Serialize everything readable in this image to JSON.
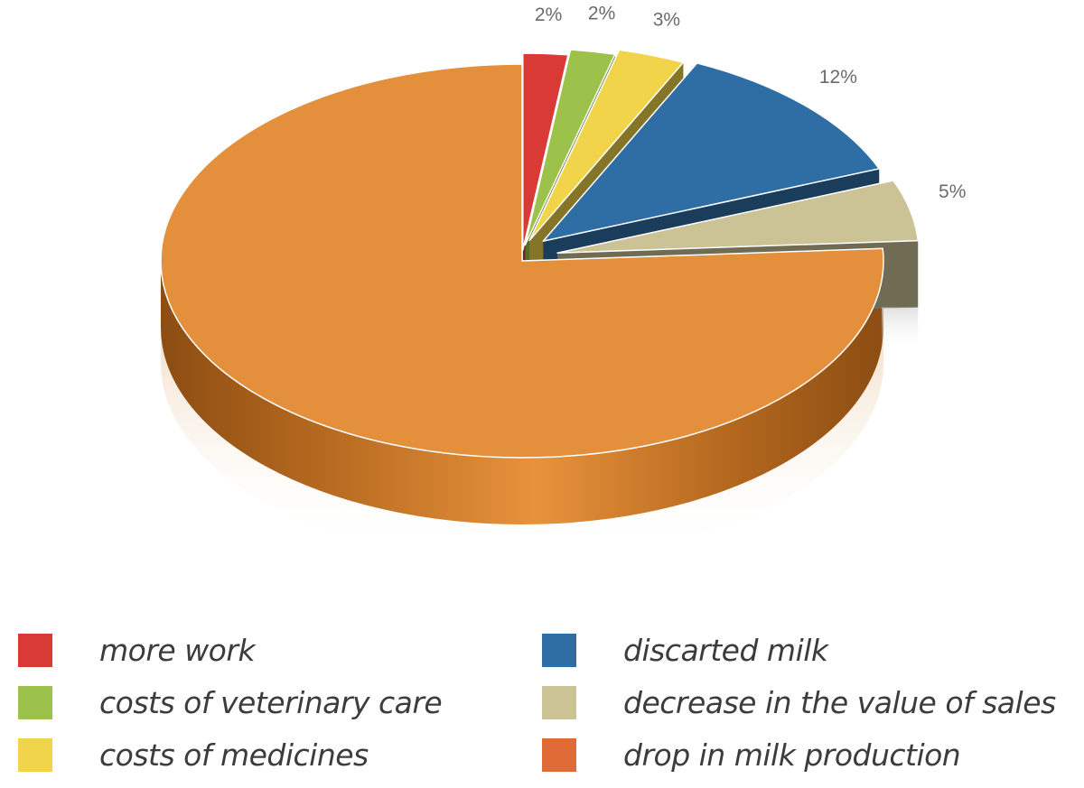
{
  "chart_data": {
    "type": "pie",
    "slices": [
      {
        "label": "more work",
        "value": 2,
        "value_label": "2%",
        "color": "#d93a35"
      },
      {
        "label": "costs of veterinary care",
        "value": 2,
        "value_label": "2%",
        "color": "#9cc24c"
      },
      {
        "label": "costs of medicines",
        "value": 3,
        "value_label": "3%",
        "color": "#f2d44a"
      },
      {
        "label": "discarted milk",
        "value": 12,
        "value_label": "12%",
        "color": "#2f6ea5"
      },
      {
        "label": "decrease in the value of sales",
        "value": 5,
        "value_label": "5%",
        "color": "#cbc396"
      },
      {
        "label": "drop in milk production",
        "value": 76,
        "value_label": "",
        "color": "#e48f3c"
      }
    ],
    "legend_colors": [
      "#d93a35",
      "#9cc24c",
      "#f2d44a",
      "#2f6ea5",
      "#cbc396",
      "#e06b36"
    ],
    "legend_placement": "bottom"
  }
}
